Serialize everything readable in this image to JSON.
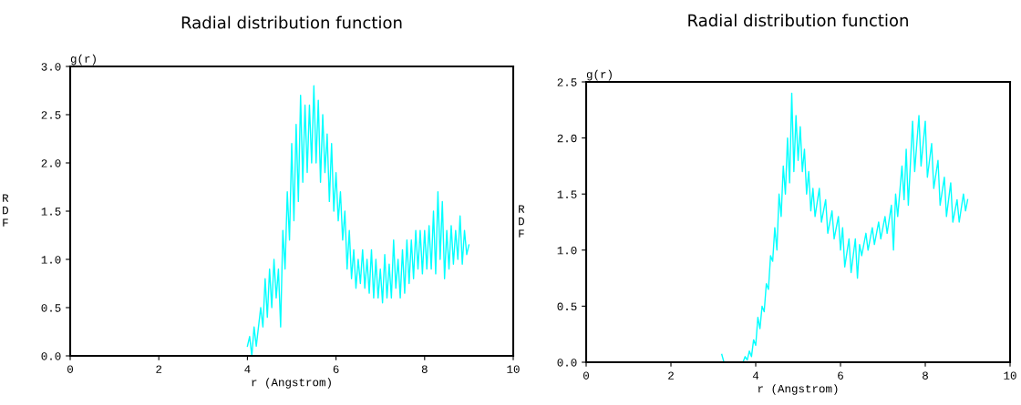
{
  "chart_data": [
    {
      "type": "line",
      "title": "Radial distribution function",
      "xlabel": "r (Angstrom)",
      "ylabel": "RDF",
      "annotations": [
        "g(r)"
      ],
      "series": [
        {
          "color": "#00ffff",
          "x": [
            4.0,
            4.05,
            4.1,
            4.15,
            4.2,
            4.3,
            4.35,
            4.4,
            4.45,
            4.5,
            4.55,
            4.6,
            4.65,
            4.7,
            4.75,
            4.8,
            4.85,
            4.9,
            4.95,
            5.0,
            5.05,
            5.1,
            5.15,
            5.2,
            5.25,
            5.3,
            5.35,
            5.4,
            5.45,
            5.5,
            5.55,
            5.6,
            5.65,
            5.7,
            5.75,
            5.8,
            5.85,
            5.9,
            5.95,
            6.0,
            6.05,
            6.1,
            6.15,
            6.2,
            6.25,
            6.3,
            6.35,
            6.4,
            6.45,
            6.5,
            6.55,
            6.6,
            6.65,
            6.7,
            6.75,
            6.8,
            6.85,
            6.9,
            6.95,
            7.0,
            7.05,
            7.1,
            7.15,
            7.2,
            7.25,
            7.3,
            7.35,
            7.4,
            7.45,
            7.5,
            7.55,
            7.6,
            7.65,
            7.7,
            7.75,
            7.8,
            7.85,
            7.9,
            7.95,
            8.0,
            8.05,
            8.1,
            8.15,
            8.2,
            8.25,
            8.3,
            8.35,
            8.4,
            8.45,
            8.5,
            8.55,
            8.6,
            8.65,
            8.7,
            8.75,
            8.8,
            8.85,
            8.9,
            8.95,
            9.0
          ],
          "values": [
            0.1,
            0.2,
            0.0,
            0.3,
            0.1,
            0.5,
            0.3,
            0.8,
            0.4,
            0.9,
            0.5,
            1.0,
            0.6,
            0.9,
            0.3,
            1.3,
            0.9,
            1.7,
            1.2,
            2.2,
            1.4,
            2.4,
            1.6,
            2.7,
            1.8,
            2.6,
            1.9,
            2.6,
            2.0,
            2.8,
            2.0,
            2.65,
            1.8,
            2.5,
            1.9,
            2.3,
            1.6,
            2.2,
            1.5,
            1.9,
            1.4,
            1.7,
            1.2,
            1.5,
            0.9,
            1.3,
            0.8,
            1.1,
            0.7,
            1.0,
            0.75,
            1.1,
            0.7,
            1.0,
            0.65,
            1.1,
            0.6,
            1.0,
            0.6,
            0.9,
            0.55,
            1.05,
            0.6,
            0.95,
            0.6,
            1.2,
            0.7,
            1.0,
            0.6,
            1.1,
            0.65,
            1.2,
            0.75,
            1.2,
            0.8,
            1.3,
            0.9,
            1.3,
            0.85,
            1.3,
            0.9,
            1.35,
            0.9,
            1.5,
            0.85,
            1.7,
            1.0,
            1.6,
            0.8,
            1.3,
            0.9,
            1.35,
            0.95,
            1.3,
            1.0,
            1.45,
            0.95,
            1.3,
            1.05,
            1.15
          ]
        }
      ],
      "xlim": [
        0,
        10
      ],
      "xticks": [
        0,
        2,
        4,
        6,
        8,
        10
      ],
      "ylim": [
        0,
        3.0
      ],
      "yticks": [
        {
          "value": 0,
          "label": "0.0"
        },
        {
          "value": 0.5,
          "label": "0.5"
        },
        {
          "value": 1.0,
          "label": "1.0"
        },
        {
          "value": 1.5,
          "label": "1.5"
        },
        {
          "value": 2.0,
          "label": "2.0"
        },
        {
          "value": 2.5,
          "label": "2.5"
        },
        {
          "value": 3.0,
          "label": "3.0"
        }
      ],
      "grid": false
    },
    {
      "type": "line",
      "title": "Radial distribution function",
      "xlabel": "r (Angstrom)",
      "ylabel": "RDF",
      "annotations": [
        "g(r)"
      ],
      "series": [
        {
          "color": "#00ffff",
          "x": [
            3.2,
            3.25,
            3.7,
            3.75,
            3.8,
            3.85,
            3.9,
            3.95,
            4.0,
            4.05,
            4.1,
            4.15,
            4.2,
            4.25,
            4.3,
            4.35,
            4.4,
            4.45,
            4.5,
            4.55,
            4.6,
            4.65,
            4.7,
            4.75,
            4.8,
            4.85,
            4.9,
            4.95,
            5.0,
            5.05,
            5.1,
            5.15,
            5.2,
            5.25,
            5.3,
            5.35,
            5.4,
            5.5,
            5.55,
            5.65,
            5.7,
            5.8,
            5.85,
            5.95,
            6.0,
            6.05,
            6.1,
            6.2,
            6.25,
            6.35,
            6.4,
            6.45,
            6.5,
            6.6,
            6.65,
            6.75,
            6.8,
            6.9,
            6.95,
            7.05,
            7.1,
            7.2,
            7.25,
            7.3,
            7.35,
            7.45,
            7.5,
            7.55,
            7.6,
            7.7,
            7.75,
            7.85,
            7.9,
            8.0,
            8.05,
            8.15,
            8.2,
            8.3,
            8.35,
            8.45,
            8.5,
            8.6,
            8.65,
            8.75,
            8.8,
            8.9,
            8.95,
            9.0
          ],
          "values": [
            0.07,
            0.0,
            0.0,
            0.05,
            0.02,
            0.1,
            0.05,
            0.2,
            0.15,
            0.4,
            0.3,
            0.5,
            0.45,
            0.7,
            0.65,
            0.95,
            0.9,
            1.2,
            1.0,
            1.5,
            1.3,
            1.75,
            1.5,
            2.0,
            1.6,
            2.4,
            1.7,
            2.2,
            1.8,
            2.1,
            1.7,
            1.9,
            1.5,
            1.7,
            1.35,
            1.55,
            1.3,
            1.55,
            1.25,
            1.45,
            1.15,
            1.35,
            1.1,
            1.3,
            1.0,
            1.2,
            0.85,
            1.1,
            0.8,
            1.1,
            0.75,
            1.05,
            0.95,
            1.15,
            1.0,
            1.2,
            1.05,
            1.25,
            1.1,
            1.3,
            1.15,
            1.4,
            1.0,
            1.5,
            1.3,
            1.75,
            1.45,
            1.9,
            1.4,
            2.15,
            1.7,
            2.2,
            1.75,
            2.15,
            1.65,
            1.95,
            1.55,
            1.8,
            1.4,
            1.65,
            1.3,
            1.6,
            1.25,
            1.45,
            1.25,
            1.5,
            1.35,
            1.45
          ]
        }
      ],
      "xlim": [
        0,
        10
      ],
      "xticks": [
        0,
        2,
        4,
        6,
        8,
        10
      ],
      "ylim": [
        0,
        2.5
      ],
      "yticks": [
        {
          "value": 0,
          "label": "0.0"
        },
        {
          "value": 0.5,
          "label": "0.5"
        },
        {
          "value": 1.0,
          "label": "1.0"
        },
        {
          "value": 1.5,
          "label": "1.5"
        },
        {
          "value": 2.0,
          "label": "2.0"
        },
        {
          "value": 2.5,
          "label": "2.5"
        }
      ],
      "grid": false
    }
  ]
}
